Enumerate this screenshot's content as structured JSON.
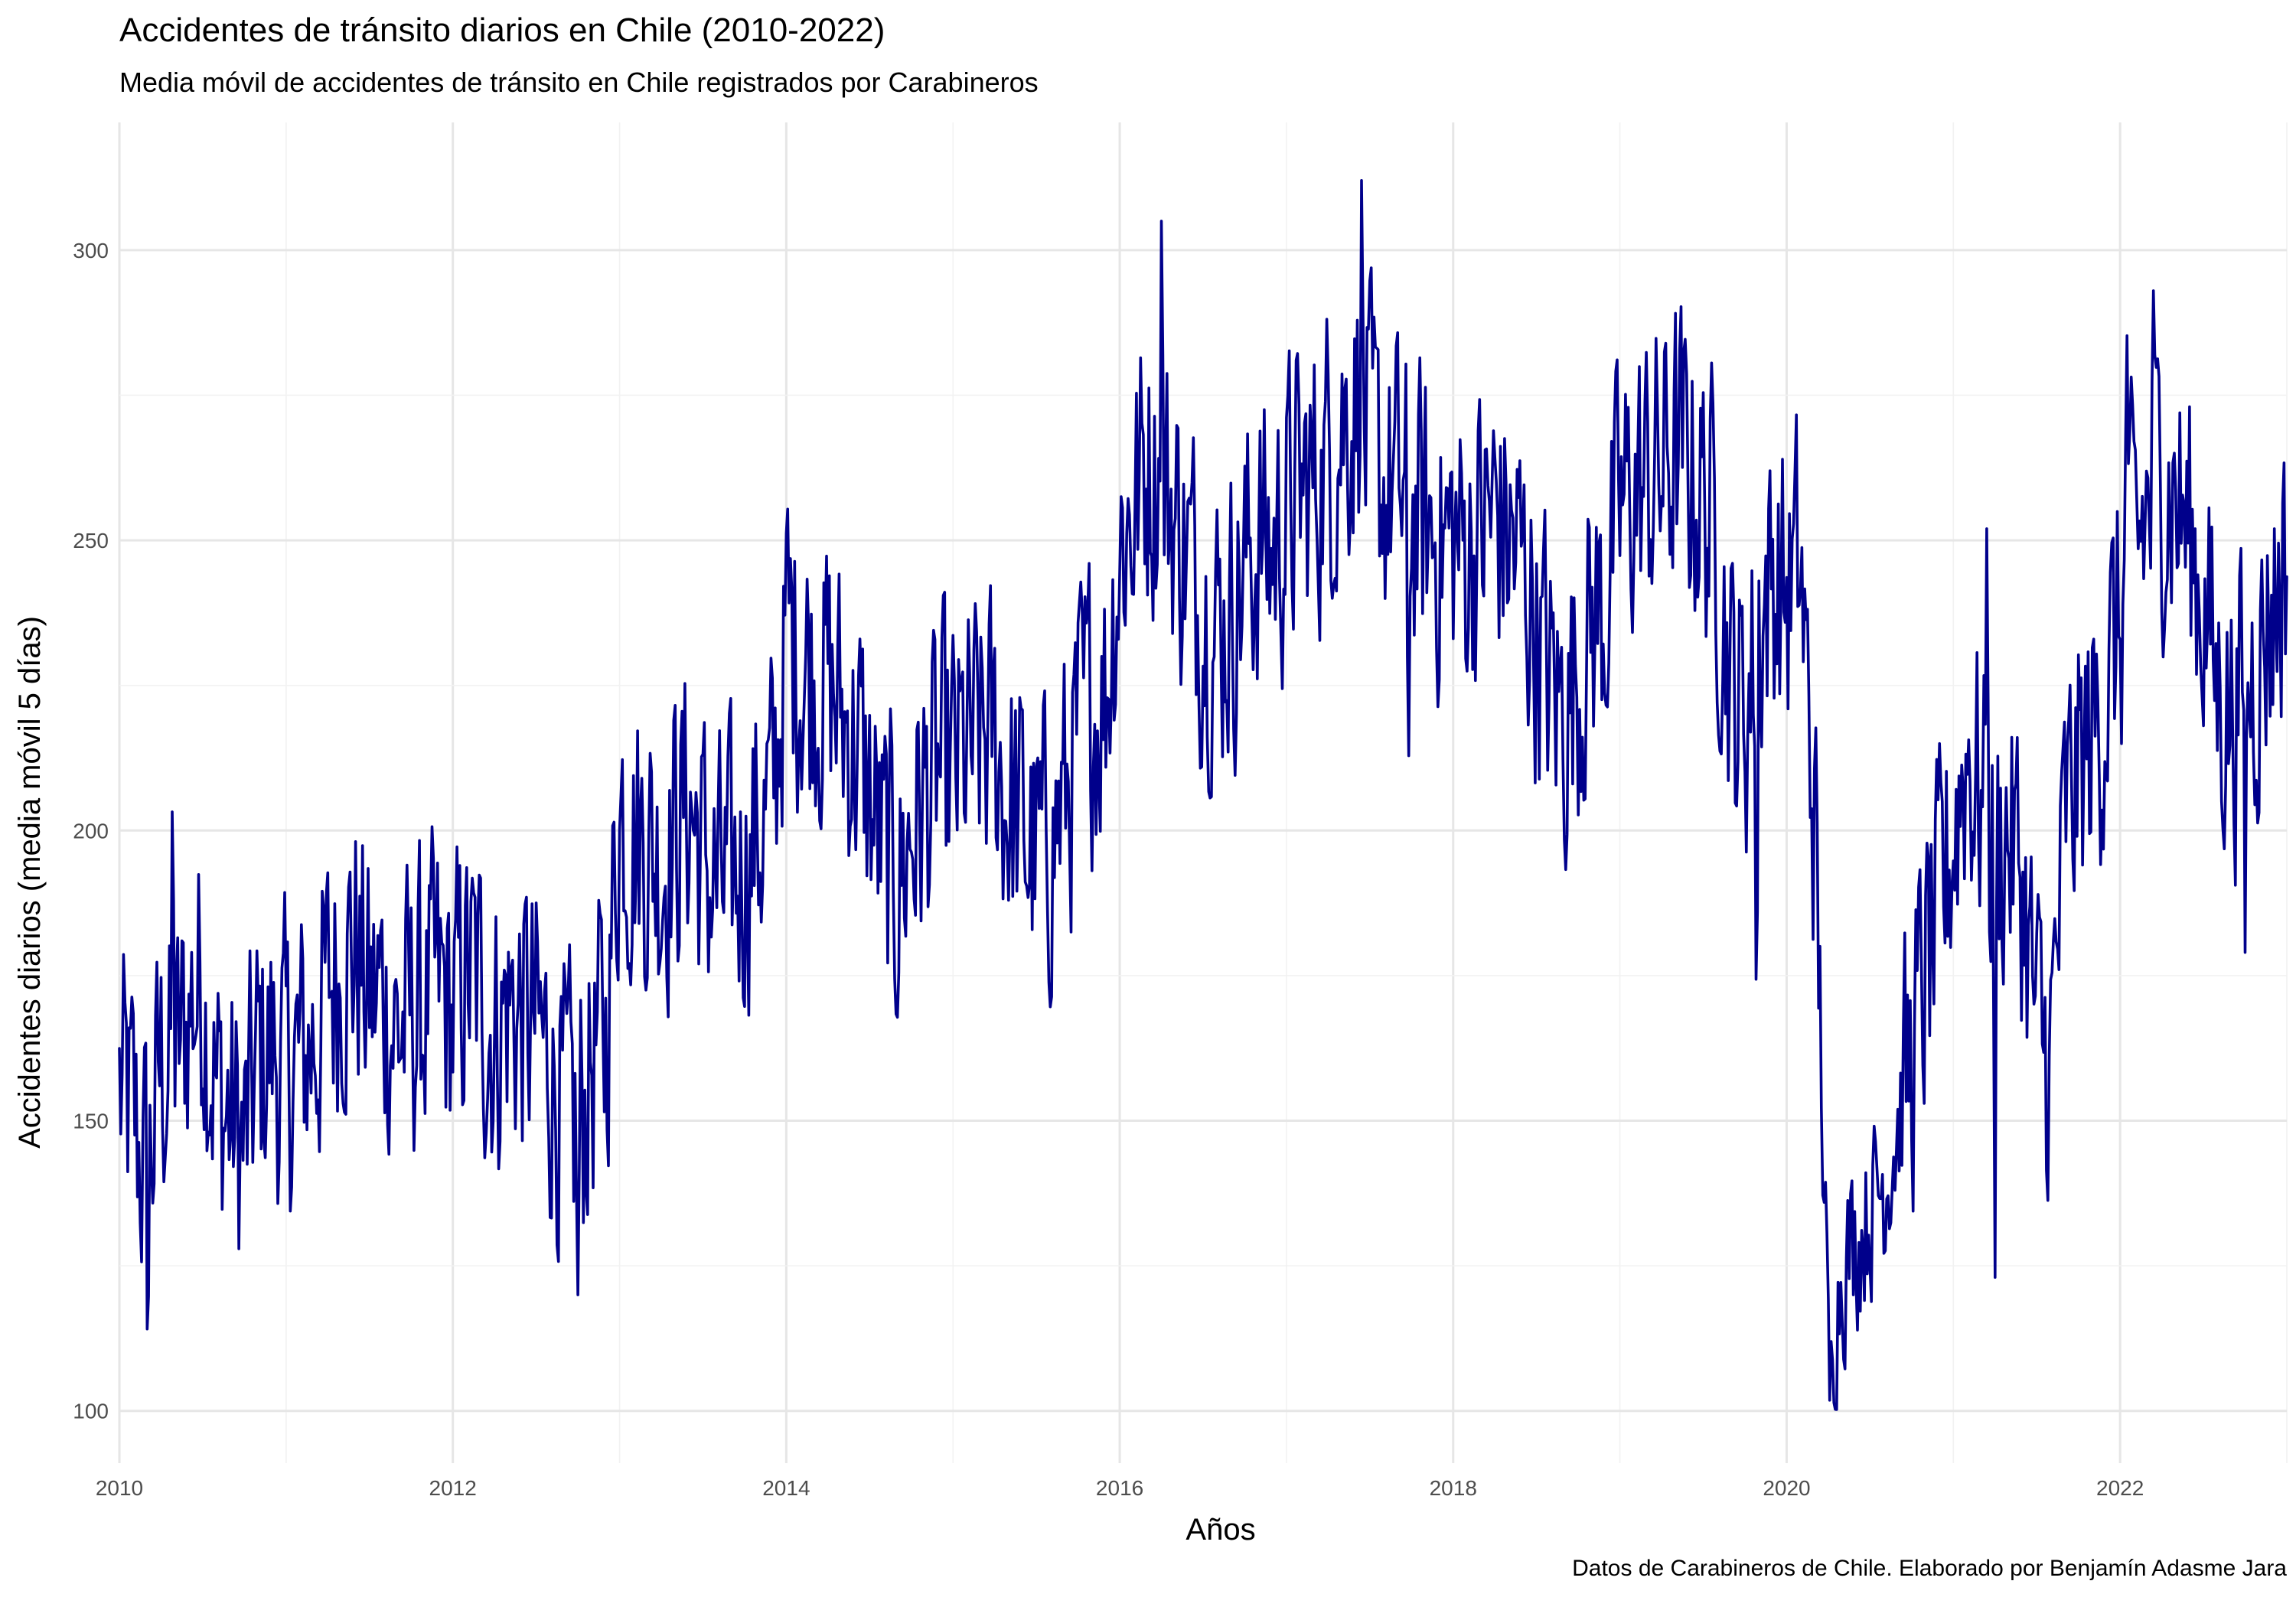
{
  "chart_data": {
    "type": "line",
    "title": "Accidentes de tránsito diarios en Chile (2010-2022)",
    "subtitle": "Media móvil de accidentes de tránsito en Chile registrados por Carabineros",
    "caption": "Datos de Carabineros de Chile. Elaborado por Benjamín Adasme Jara",
    "xlabel": "Años",
    "ylabel": "Accidentes diarios (media móvil 5 días)",
    "xlim": [
      2010,
      2023
    ],
    "ylim": [
      91,
      322
    ],
    "x_ticks": [
      2010,
      2012,
      2014,
      2016,
      2018,
      2020,
      2022
    ],
    "x_tick_labels": [
      "2010",
      "2012",
      "2014",
      "2016",
      "2018",
      "2020",
      "2022"
    ],
    "y_ticks": [
      100,
      150,
      200,
      250,
      300
    ],
    "y_tick_labels": [
      "100",
      "150",
      "200",
      "250",
      "300"
    ],
    "grid": true,
    "line_color": "#00008b",
    "x": [
      2010.0,
      2010.08,
      2010.17,
      2010.25,
      2010.33,
      2010.42,
      2010.5,
      2010.58,
      2010.67,
      2010.75,
      2010.83,
      2010.92,
      2011.0,
      2011.08,
      2011.17,
      2011.25,
      2011.33,
      2011.42,
      2011.5,
      2011.58,
      2011.67,
      2011.75,
      2011.83,
      2011.92,
      2012.0,
      2012.08,
      2012.17,
      2012.25,
      2012.33,
      2012.42,
      2012.5,
      2012.58,
      2012.67,
      2012.75,
      2012.83,
      2012.92,
      2013.0,
      2013.08,
      2013.17,
      2013.25,
      2013.33,
      2013.42,
      2013.5,
      2013.58,
      2013.67,
      2013.75,
      2013.83,
      2013.92,
      2014.0,
      2014.08,
      2014.17,
      2014.25,
      2014.33,
      2014.42,
      2014.5,
      2014.58,
      2014.67,
      2014.75,
      2014.83,
      2014.92,
      2015.0,
      2015.08,
      2015.17,
      2015.25,
      2015.33,
      2015.42,
      2015.5,
      2015.58,
      2015.67,
      2015.75,
      2015.83,
      2015.92,
      2016.0,
      2016.08,
      2016.17,
      2016.25,
      2016.33,
      2016.42,
      2016.5,
      2016.58,
      2016.67,
      2016.75,
      2016.83,
      2016.92,
      2017.0,
      2017.08,
      2017.17,
      2017.25,
      2017.33,
      2017.42,
      2017.5,
      2017.58,
      2017.67,
      2017.75,
      2017.83,
      2017.92,
      2018.0,
      2018.08,
      2018.17,
      2018.25,
      2018.33,
      2018.42,
      2018.5,
      2018.58,
      2018.67,
      2018.75,
      2018.83,
      2018.92,
      2019.0,
      2019.08,
      2019.17,
      2019.25,
      2019.33,
      2019.42,
      2019.5,
      2019.58,
      2019.67,
      2019.75,
      2019.83,
      2019.92,
      2020.0,
      2020.08,
      2020.17,
      2020.25,
      2020.33,
      2020.42,
      2020.5,
      2020.58,
      2020.67,
      2020.75,
      2020.83,
      2020.92,
      2021.0,
      2021.08,
      2021.17,
      2021.25,
      2021.33,
      2021.42,
      2021.5,
      2021.58,
      2021.67,
      2021.75,
      2021.83,
      2021.92,
      2022.0,
      2022.08,
      2022.17,
      2022.25,
      2022.33,
      2022.42,
      2022.5,
      2022.58,
      2022.67,
      2022.75,
      2022.83,
      2022.92,
      2023.0
    ],
    "y": [
      155,
      150,
      140,
      160,
      158,
      170,
      175,
      155,
      150,
      145,
      160,
      162,
      158,
      160,
      165,
      172,
      178,
      180,
      170,
      172,
      165,
      168,
      170,
      172,
      168,
      175,
      172,
      165,
      170,
      168,
      165,
      160,
      150,
      148,
      160,
      165,
      205,
      200,
      198,
      195,
      200,
      205,
      195,
      190,
      190,
      195,
      200,
      205,
      235,
      230,
      228,
      225,
      220,
      215,
      205,
      195,
      190,
      200,
      205,
      210,
      210,
      212,
      215,
      215,
      205,
      200,
      195,
      198,
      205,
      215,
      222,
      225,
      250,
      255,
      265,
      260,
      255,
      245,
      240,
      235,
      238,
      245,
      250,
      248,
      255,
      258,
      260,
      265,
      270,
      275,
      265,
      260,
      258,
      255,
      252,
      250,
      250,
      248,
      252,
      255,
      250,
      245,
      235,
      225,
      220,
      228,
      235,
      240,
      255,
      258,
      260,
      262,
      265,
      262,
      258,
      250,
      225,
      220,
      235,
      245,
      240,
      245,
      200,
      110,
      125,
      130,
      135,
      140,
      150,
      160,
      175,
      185,
      200,
      215,
      205,
      195,
      200,
      190,
      165,
      160,
      200,
      210,
      215,
      225,
      235,
      248,
      255,
      262,
      258,
      250,
      240,
      225,
      220,
      225,
      230,
      240,
      245
    ],
    "peaks": [
      [
        2010.32,
        215
      ],
      [
        2010.17,
        108
      ],
      [
        2012.75,
        120
      ],
      [
        2016.25,
        305
      ],
      [
        2017.45,
        312
      ],
      [
        2017.73,
        195
      ],
      [
        2019.82,
        154
      ],
      [
        2020.26,
        100
      ],
      [
        2021.2,
        252
      ],
      [
        2021.25,
        123
      ],
      [
        2021.52,
        186
      ],
      [
        2022.04,
        293
      ],
      [
        2022.2,
        293
      ],
      [
        2022.75,
        179
      ],
      [
        2022.98,
        263
      ]
    ]
  }
}
